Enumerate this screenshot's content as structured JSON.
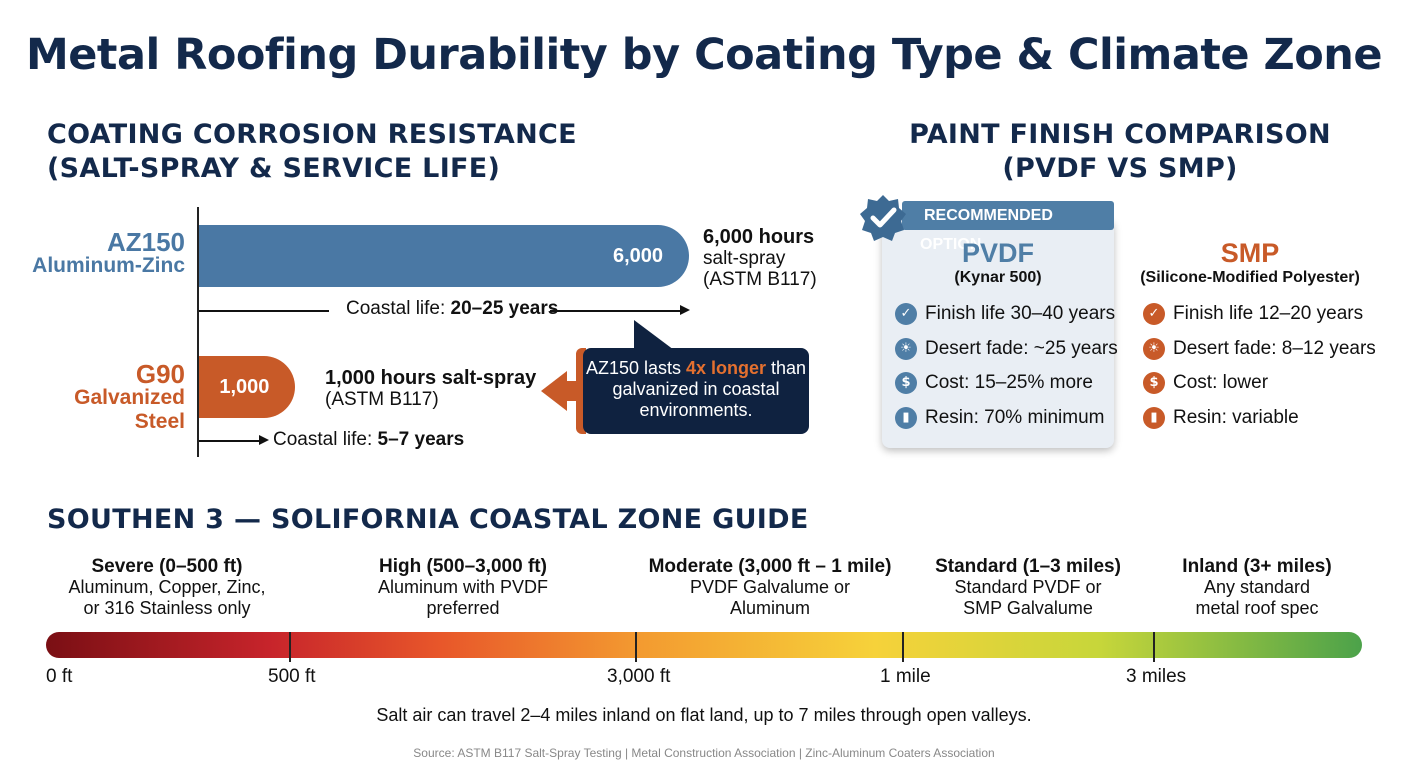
{
  "title": "Metal Roofing Durability by Coating Type & Climate Zone",
  "corrosion": {
    "section_title_1": "COATING CORROSION RESISTANCE",
    "section_title_2": "(SALT-SPRAY & SERVICE LIFE)",
    "callout_pre": "AZ150 lasts ",
    "callout_hl": "4x longer",
    "callout_post": " than galvanized in coastal environments."
  },
  "chart_data": {
    "type": "bar",
    "orientation": "horizontal",
    "categories": [
      "AZ150 Aluminum-Zinc",
      "G90 Galvanized Steel"
    ],
    "values": [
      6000,
      1000
    ],
    "series": [
      {
        "values": [
          6000,
          1000
        ]
      }
    ],
    "bars": [
      {
        "code": "AZ150",
        "name": "Aluminum-Zinc",
        "value": 6000,
        "value_label": "6,000",
        "note_bold": "6,000 hours",
        "note_line2": "salt-spray",
        "note_line3": "(ASTM B117)",
        "life_label": "Coastal life: ",
        "life_value": "20–25 years",
        "color": "#4a78a4"
      },
      {
        "code": "G90",
        "name": "Galvanized Steel",
        "value": 1000,
        "value_label": "1,000",
        "note_bold": "1,000 hours salt-spray",
        "note_line2": "(ASTM B117)",
        "note_line3": "",
        "life_label": "Coastal life: ",
        "life_value": "5–7 years",
        "color": "#c85a28"
      }
    ],
    "xlim": [
      0,
      6000
    ]
  },
  "paint": {
    "section_title_1": "PAINT FINISH COMPARISON",
    "section_title_2": "(PVDF VS SMP)",
    "recommended_label": "RECOMMENDED OPTION",
    "pvdf": {
      "title": "PVDF",
      "subtitle": "(Kynar 500)",
      "color": "#4f7ea6",
      "features": [
        {
          "icon": "check-icon",
          "text": "Finish life 30–40 years"
        },
        {
          "icon": "sun-icon",
          "text": "Desert fade: ~25 years"
        },
        {
          "icon": "dollar-icon",
          "text": "Cost: 15–25% more"
        },
        {
          "icon": "bar-chart-icon",
          "text": "Resin: 70% minimum"
        }
      ]
    },
    "smp": {
      "title": "SMP",
      "subtitle": "(Silicone-Modified Polyester)",
      "color": "#c85a28",
      "features": [
        {
          "icon": "check-icon",
          "text": "Finish life 12–20 years"
        },
        {
          "icon": "sun-icon",
          "text": "Desert fade: 8–12 years"
        },
        {
          "icon": "dollar-icon",
          "text": "Cost: lower"
        },
        {
          "icon": "bar-chart-icon",
          "text": "Resin: variable"
        }
      ]
    }
  },
  "zones": {
    "section_title": "SOUTHEN 3 — SOLIFORNIA COASTAL ZONE GUIDE",
    "items": [
      {
        "title": "Severe (0–500 ft)",
        "line1": "Aluminum, Copper, Zinc,",
        "line2": "or 316 Stainless only"
      },
      {
        "title": "High (500–3,000 ft)",
        "line1": "Aluminum with PVDF",
        "line2": "preferred"
      },
      {
        "title": "Moderate (3,000 ft – 1 mile)",
        "line1": "PVDF Galvalume or",
        "line2": "Aluminum"
      },
      {
        "title": "Standard (1–3 miles)",
        "line1": "Standard PVDF or",
        "line2": "SMP Galvalume"
      },
      {
        "title": "Inland (3+ miles)",
        "line1": "Any standard",
        "line2": "metal roof spec"
      }
    ],
    "ticks": [
      "0 ft",
      "500 ft",
      "3,000 ft",
      "1 mile",
      "3 miles"
    ],
    "footnote": "Salt air can travel 2–4 miles inland on flat land, up to 7 miles through open valleys.",
    "source": "Source: ASTM B117 Salt-Spray Testing | Metal Construction Association | Zinc-Aluminum Coaters Association"
  }
}
